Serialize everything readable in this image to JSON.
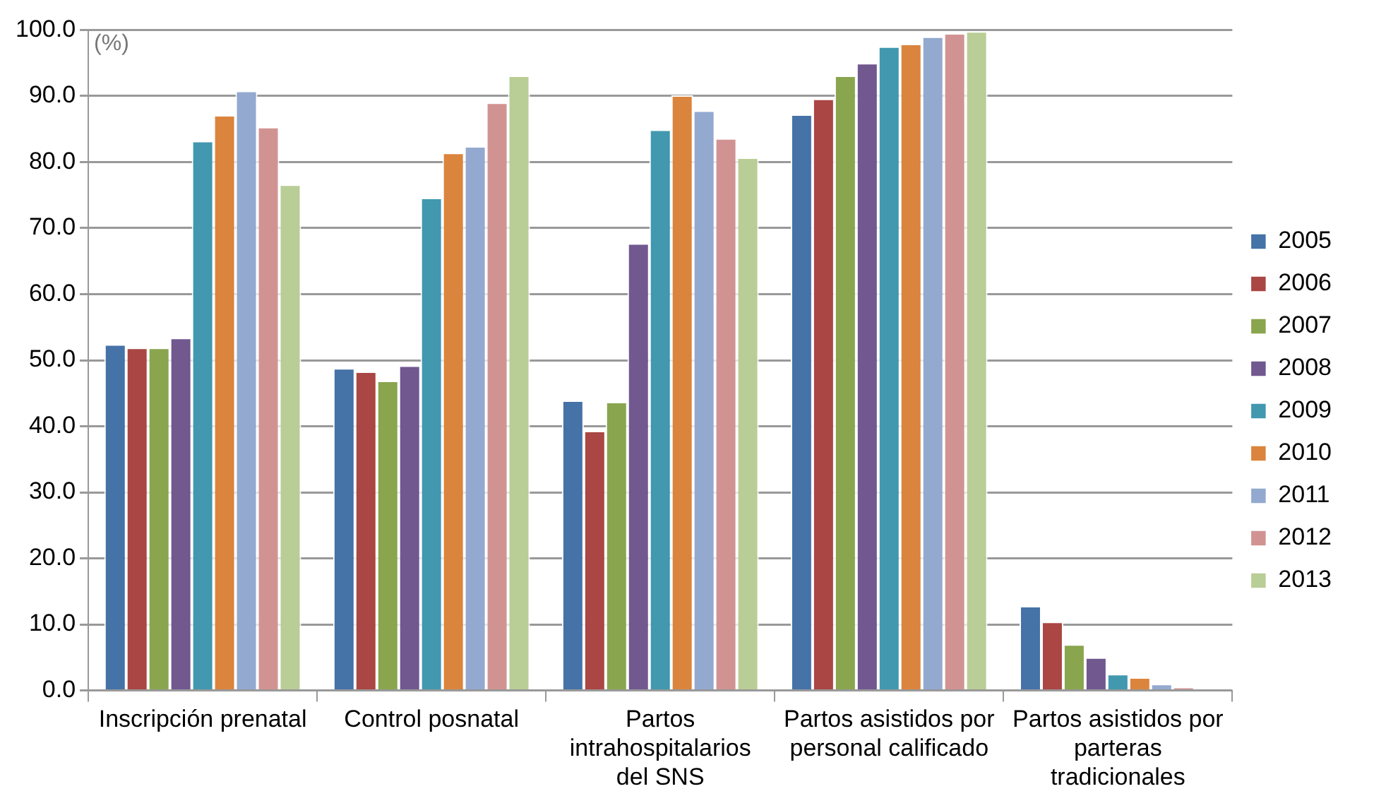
{
  "chart_data": {
    "type": "bar",
    "categories": [
      "Inscripción prenatal",
      "Control posnatal",
      "Partos intrahospitalarios del SNS",
      "Partos asistidos por personal calificado",
      "Partos asistidos por parteras tradicionales"
    ],
    "series": [
      {
        "name": "2005",
        "color": "#4572a7",
        "values": [
          52.4,
          48.8,
          43.9,
          87.2,
          12.8
        ]
      },
      {
        "name": "2006",
        "color": "#aa4643",
        "values": [
          51.9,
          48.3,
          39.3,
          89.6,
          10.4
        ]
      },
      {
        "name": "2007",
        "color": "#89a54e",
        "values": [
          51.9,
          46.9,
          43.7,
          93.1,
          7.0
        ]
      },
      {
        "name": "2008",
        "color": "#71588f",
        "values": [
          53.4,
          49.2,
          67.7,
          95.0,
          5.0
        ]
      },
      {
        "name": "2009",
        "color": "#4198af",
        "values": [
          83.2,
          74.6,
          84.9,
          97.5,
          2.5
        ]
      },
      {
        "name": "2010",
        "color": "#db843d",
        "values": [
          87.1,
          81.4,
          90.1,
          97.9,
          2.0
        ]
      },
      {
        "name": "2011",
        "color": "#93a9cf",
        "values": [
          90.8,
          82.4,
          87.8,
          99.0,
          1.0
        ]
      },
      {
        "name": "2012",
        "color": "#d19392",
        "values": [
          85.3,
          89.0,
          83.6,
          99.5,
          0.5
        ]
      },
      {
        "name": "2013",
        "color": "#b9cd96",
        "values": [
          76.6,
          93.1,
          80.7,
          99.8,
          0.0
        ]
      }
    ],
    "ylabel": "(%)",
    "ylim": [
      0,
      100
    ],
    "yticks": [
      {
        "value": 0,
        "label": "0.0"
      },
      {
        "value": 10,
        "label": "10.0"
      },
      {
        "value": 20,
        "label": "20.0"
      },
      {
        "value": 30,
        "label": "30.0"
      },
      {
        "value": 40,
        "label": "40.0"
      },
      {
        "value": 50,
        "label": "50.0"
      },
      {
        "value": 60,
        "label": "60.0"
      },
      {
        "value": 70,
        "label": "70.0"
      },
      {
        "value": 80,
        "label": "80.0"
      },
      {
        "value": 90,
        "label": "90.0"
      },
      {
        "value": 100,
        "label": "100.0"
      }
    ],
    "grid": "y",
    "legend": "right"
  }
}
